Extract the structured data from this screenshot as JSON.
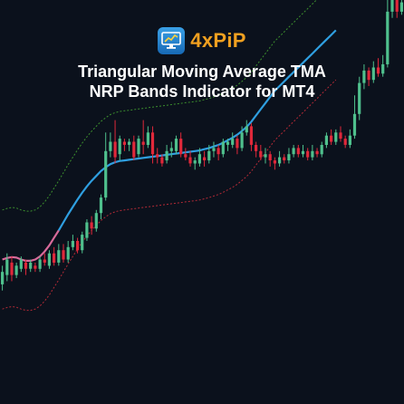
{
  "brand": {
    "name": "4xPiP",
    "logo_icon": "monitor-chart-icon",
    "text_color": "#f0a020"
  },
  "title": {
    "line1": "Triangular Moving Average TMA",
    "line2": "NRP Bands Indicator for MT4"
  },
  "colors": {
    "background": "#0b111c",
    "bull": "#4fc08d",
    "bear": "#e0283a",
    "tma_up": "#2f9fe0",
    "tma_down": "#d86a9a",
    "upper_band": "#3c8f2e",
    "lower_band": "#b32a36"
  },
  "chart_data": {
    "type": "candlestick",
    "grid": false,
    "legend": "none",
    "ylim": [
      0,
      100
    ],
    "candles": [
      {
        "o": 17,
        "c": 21,
        "h": 23,
        "l": 15
      },
      {
        "o": 20,
        "c": 25,
        "h": 27,
        "l": 18
      },
      {
        "o": 24,
        "c": 20,
        "h": 26,
        "l": 18
      },
      {
        "o": 20,
        "c": 23,
        "h": 24,
        "l": 19
      },
      {
        "o": 22,
        "c": 25,
        "h": 26,
        "l": 21
      },
      {
        "o": 24,
        "c": 22,
        "h": 25,
        "l": 20
      },
      {
        "o": 22,
        "c": 24,
        "h": 25,
        "l": 21
      },
      {
        "o": 23,
        "c": 22,
        "h": 24,
        "l": 21
      },
      {
        "o": 22,
        "c": 25,
        "h": 26,
        "l": 21
      },
      {
        "o": 25,
        "c": 24,
        "h": 27,
        "l": 23
      },
      {
        "o": 23,
        "c": 27,
        "h": 28,
        "l": 22
      },
      {
        "o": 27,
        "c": 24,
        "h": 29,
        "l": 23
      },
      {
        "o": 24,
        "c": 28,
        "h": 30,
        "l": 23
      },
      {
        "o": 28,
        "c": 25,
        "h": 30,
        "l": 24
      },
      {
        "o": 25,
        "c": 29,
        "h": 31,
        "l": 24
      },
      {
        "o": 29,
        "c": 31,
        "h": 33,
        "l": 28
      },
      {
        "o": 31,
        "c": 28,
        "h": 32,
        "l": 27
      },
      {
        "o": 28,
        "c": 33,
        "h": 34,
        "l": 27
      },
      {
        "o": 32,
        "c": 37,
        "h": 38,
        "l": 31
      },
      {
        "o": 37,
        "c": 35,
        "h": 39,
        "l": 33
      },
      {
        "o": 35,
        "c": 40,
        "h": 41,
        "l": 34
      },
      {
        "o": 40,
        "c": 45,
        "h": 46,
        "l": 38
      },
      {
        "o": 45,
        "c": 60,
        "h": 66,
        "l": 44
      },
      {
        "o": 60,
        "c": 63,
        "h": 66,
        "l": 58
      },
      {
        "o": 63,
        "c": 58,
        "h": 70,
        "l": 56
      },
      {
        "o": 59,
        "c": 64,
        "h": 65,
        "l": 57
      },
      {
        "o": 63,
        "c": 62,
        "h": 64,
        "l": 60
      },
      {
        "o": 62,
        "c": 63,
        "h": 64,
        "l": 60
      },
      {
        "o": 63,
        "c": 58,
        "h": 65,
        "l": 57
      },
      {
        "o": 59,
        "c": 64,
        "h": 65,
        "l": 58
      },
      {
        "o": 63,
        "c": 62,
        "h": 70,
        "l": 59
      },
      {
        "o": 62,
        "c": 66,
        "h": 68,
        "l": 61
      },
      {
        "o": 66,
        "c": 59,
        "h": 68,
        "l": 56
      },
      {
        "o": 59,
        "c": 58,
        "h": 61,
        "l": 56
      },
      {
        "o": 58,
        "c": 56,
        "h": 59,
        "l": 55
      },
      {
        "o": 57,
        "c": 60,
        "h": 62,
        "l": 56
      },
      {
        "o": 60,
        "c": 61,
        "h": 63,
        "l": 58
      },
      {
        "o": 60,
        "c": 64,
        "h": 65,
        "l": 59
      },
      {
        "o": 64,
        "c": 59,
        "h": 66,
        "l": 58
      },
      {
        "o": 59,
        "c": 58,
        "h": 61,
        "l": 57
      },
      {
        "o": 58,
        "c": 56,
        "h": 60,
        "l": 55
      },
      {
        "o": 56,
        "c": 57,
        "h": 58,
        "l": 54
      },
      {
        "o": 56,
        "c": 59,
        "h": 61,
        "l": 55
      },
      {
        "o": 58,
        "c": 57,
        "h": 60,
        "l": 55
      },
      {
        "o": 57,
        "c": 60,
        "h": 62,
        "l": 56
      },
      {
        "o": 60,
        "c": 61,
        "h": 63,
        "l": 58
      },
      {
        "o": 61,
        "c": 59,
        "h": 62,
        "l": 57
      },
      {
        "o": 59,
        "c": 63,
        "h": 64,
        "l": 58
      },
      {
        "o": 62,
        "c": 63,
        "h": 64,
        "l": 60
      },
      {
        "o": 62,
        "c": 64,
        "h": 66,
        "l": 61
      },
      {
        "o": 64,
        "c": 61,
        "h": 65,
        "l": 59
      },
      {
        "o": 61,
        "c": 66,
        "h": 68,
        "l": 60
      },
      {
        "o": 66,
        "c": 68,
        "h": 70,
        "l": 65
      },
      {
        "o": 68,
        "c": 62,
        "h": 69,
        "l": 60
      },
      {
        "o": 62,
        "c": 60,
        "h": 63,
        "l": 58
      },
      {
        "o": 60,
        "c": 58,
        "h": 62,
        "l": 57
      },
      {
        "o": 58,
        "c": 59,
        "h": 61,
        "l": 56
      },
      {
        "o": 59,
        "c": 57,
        "h": 60,
        "l": 55
      },
      {
        "o": 57,
        "c": 56,
        "h": 58,
        "l": 54
      },
      {
        "o": 56,
        "c": 58,
        "h": 60,
        "l": 55
      },
      {
        "o": 58,
        "c": 57,
        "h": 59,
        "l": 56
      },
      {
        "o": 57,
        "c": 59,
        "h": 61,
        "l": 56
      },
      {
        "o": 59,
        "c": 61,
        "h": 62,
        "l": 58
      },
      {
        "o": 61,
        "c": 59,
        "h": 62,
        "l": 58
      },
      {
        "o": 59,
        "c": 60,
        "h": 62,
        "l": 58
      },
      {
        "o": 60,
        "c": 58,
        "h": 61,
        "l": 57
      },
      {
        "o": 58,
        "c": 60,
        "h": 62,
        "l": 57
      },
      {
        "o": 60,
        "c": 59,
        "h": 61,
        "l": 58
      },
      {
        "o": 59,
        "c": 62,
        "h": 63,
        "l": 58
      },
      {
        "o": 62,
        "c": 65,
        "h": 66,
        "l": 61
      },
      {
        "o": 65,
        "c": 63,
        "h": 67,
        "l": 62
      },
      {
        "o": 63,
        "c": 66,
        "h": 67,
        "l": 62
      },
      {
        "o": 66,
        "c": 64,
        "h": 68,
        "l": 63
      },
      {
        "o": 64,
        "c": 62,
        "h": 65,
        "l": 61
      },
      {
        "o": 62,
        "c": 65,
        "h": 67,
        "l": 61
      },
      {
        "o": 65,
        "c": 72,
        "h": 78,
        "l": 64
      },
      {
        "o": 72,
        "c": 82,
        "h": 84,
        "l": 70
      },
      {
        "o": 82,
        "c": 86,
        "h": 88,
        "l": 80
      },
      {
        "o": 86,
        "c": 83,
        "h": 87,
        "l": 81
      },
      {
        "o": 83,
        "c": 87,
        "h": 89,
        "l": 82
      },
      {
        "o": 87,
        "c": 85,
        "h": 90,
        "l": 84
      },
      {
        "o": 85,
        "c": 88,
        "h": 91,
        "l": 84
      },
      {
        "o": 88,
        "c": 105,
        "h": 110,
        "l": 87
      },
      {
        "o": 105,
        "c": 112,
        "h": 115,
        "l": 103
      },
      {
        "o": 112,
        "c": 105,
        "h": 113,
        "l": 103
      },
      {
        "o": 105,
        "c": 108,
        "h": 110,
        "l": 104
      }
    ],
    "tma": [
      25.0,
      25.5,
      25.8,
      25.6,
      25.0,
      24.6,
      24.6,
      25.0,
      26.0,
      27.6,
      29.6,
      32.0,
      34.4,
      37.0,
      39.6,
      42.0,
      44.4,
      46.6,
      48.6,
      50.4,
      52.0,
      53.6,
      54.8,
      55.8,
      56.4,
      56.8,
      57.0,
      57.2,
      57.4,
      57.6,
      57.8,
      58.0,
      58.2,
      58.4,
      58.6,
      58.8,
      59.0,
      59.2,
      59.4,
      59.6,
      59.8,
      60.0,
      60.2,
      60.6,
      61.0,
      61.5,
      62.0,
      62.7,
      63.5,
      64.3,
      65.3,
      66.5,
      67.8,
      69.5,
      71.5,
      73.5,
      75.5,
      77.5,
      79.5,
      81.0,
      82.5,
      84.0,
      85.5,
      87.0,
      88.5,
      90.0,
      91.5,
      93.0,
      94.5,
      96.0,
      97.5,
      99.0
    ],
    "tma_down_until_index": 12,
    "band_offset": 16
  }
}
